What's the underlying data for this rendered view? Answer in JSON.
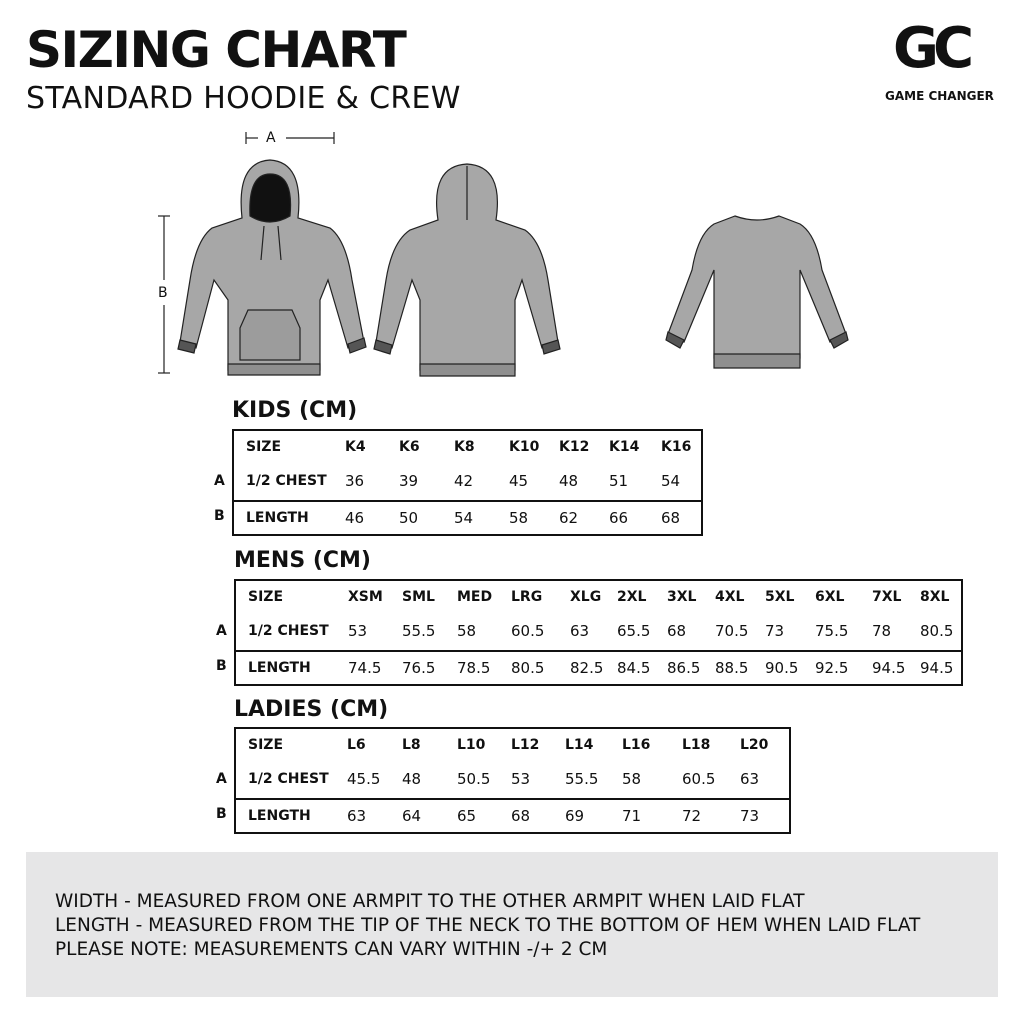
{
  "header": {
    "title": "SIZING CHART",
    "subtitle": "STANDARD HOODIE & CREW"
  },
  "logo": {
    "mark": "GC",
    "name": "GAME CHANGER"
  },
  "diagram": {
    "a": "A",
    "b": "B"
  },
  "tables": [
    {
      "title": "KIDS (CM)",
      "header": [
        "SIZE",
        "K4",
        "K6",
        "K8",
        "K10",
        "K12",
        "K14",
        "K16"
      ],
      "rows": [
        {
          "marker": "A",
          "cells": [
            "1/2 CHEST",
            36,
            39,
            42,
            45,
            48,
            51,
            54
          ]
        },
        {
          "marker": "B",
          "cells": [
            "LENGTH",
            46,
            50,
            54,
            58,
            62,
            66,
            68
          ]
        }
      ]
    },
    {
      "title": "MENS (CM)",
      "header": [
        "SIZE",
        "XSM",
        "SML",
        "MED",
        "LRG",
        "XLG",
        "2XL",
        "3XL",
        "4XL",
        "5XL",
        "6XL",
        "7XL",
        "8XL"
      ],
      "rows": [
        {
          "marker": "A",
          "cells": [
            "1/2 CHEST",
            53,
            55.5,
            58,
            60.5,
            63,
            65.5,
            68,
            70.5,
            73,
            75.5,
            78,
            80.5
          ]
        },
        {
          "marker": "B",
          "cells": [
            "LENGTH",
            74.5,
            76.5,
            78.5,
            80.5,
            82.5,
            84.5,
            86.5,
            88.5,
            90.5,
            92.5,
            94.5,
            94.5
          ]
        }
      ]
    },
    {
      "title": "LADIES (CM)",
      "header": [
        "SIZE",
        "L6",
        "L8",
        "L10",
        "L12",
        "L14",
        "L16",
        "L18",
        "L20"
      ],
      "rows": [
        {
          "marker": "A",
          "cells": [
            "1/2 CHEST",
            45.5,
            48,
            50.5,
            53,
            55.5,
            58,
            60.5,
            63
          ]
        },
        {
          "marker": "B",
          "cells": [
            "LENGTH",
            63,
            64,
            65,
            68,
            69,
            71,
            72,
            73
          ]
        }
      ]
    }
  ],
  "notes": [
    "WIDTH - MEASURED FROM ONE ARMPIT TO THE OTHER ARMPIT WHEN LAID FLAT",
    "LENGTH - MEASURED FROM THE TIP OF THE NECK TO THE BOTTOM OF HEM WHEN LAID FLAT",
    "PLEASE NOTE: MEASUREMENTS CAN VARY WITHIN -/+ 2 CM"
  ]
}
